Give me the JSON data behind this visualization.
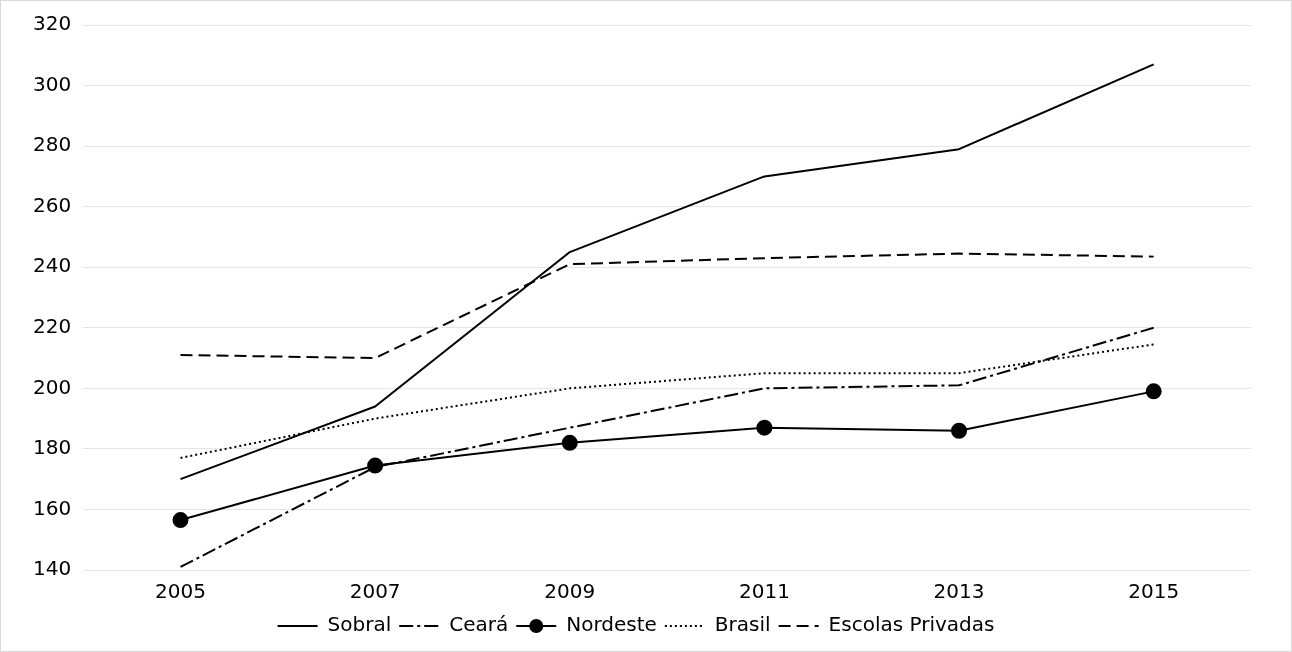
{
  "chart_data": {
    "type": "line",
    "categories": [
      "2005",
      "2007",
      "2009",
      "2011",
      "2013",
      "2015"
    ],
    "series": [
      {
        "name": "Sobral",
        "color": "#000000",
        "line_style": "solid",
        "marker": "none",
        "values": [
          170,
          194,
          245,
          270,
          279,
          307
        ]
      },
      {
        "name": "Ceará",
        "color": "#000000",
        "line_style": "dashdot",
        "marker": "none",
        "values": [
          141,
          174,
          187,
          200,
          201,
          220
        ]
      },
      {
        "name": "Nordeste",
        "color": "#000000",
        "line_style": "solid",
        "marker": "circle",
        "values": [
          156.5,
          174.5,
          182,
          187,
          186,
          199
        ]
      },
      {
        "name": "Brasil",
        "color": "#000000",
        "line_style": "dotted",
        "marker": "none",
        "values": [
          177,
          190,
          200,
          205,
          205,
          214.5
        ]
      },
      {
        "name": "Escolas Privadas",
        "color": "#000000",
        "line_style": "dashed",
        "marker": "none",
        "values": [
          211,
          210,
          241,
          243,
          244.5,
          243.5
        ]
      }
    ],
    "ylim": [
      140,
      320
    ],
    "yticks": [
      140,
      160,
      180,
      200,
      220,
      240,
      260,
      280,
      300,
      320
    ],
    "grid": "y",
    "legend": "bottom"
  }
}
